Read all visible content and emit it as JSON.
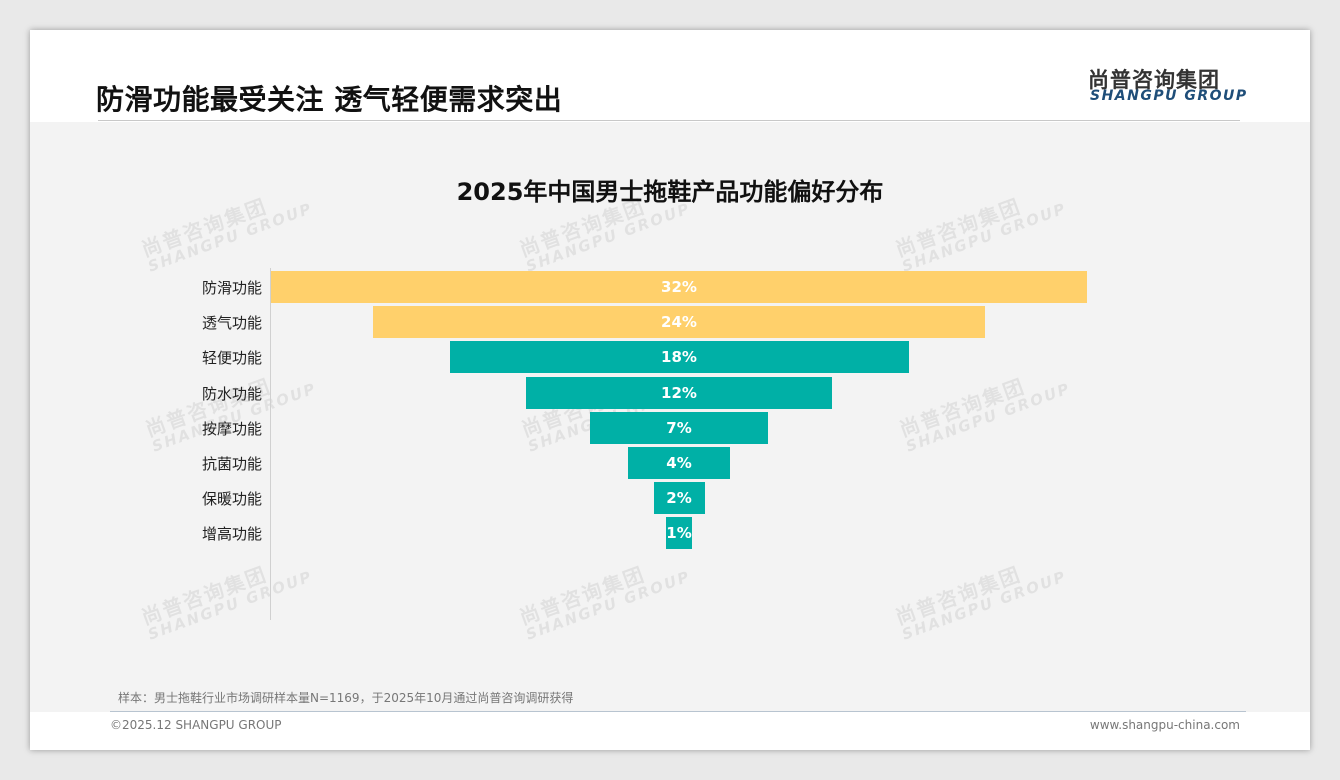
{
  "header": {
    "title": "防滑功能最受关注 透气轻便需求突出",
    "logo_cn": "尚普咨询集团",
    "logo_en": "SHANGPU GROUP"
  },
  "watermark": {
    "cn": "尚普咨询集团",
    "en": "SHANGPU GROUP"
  },
  "chart_data": {
    "type": "bar",
    "subtype": "funnel",
    "title": "2025年中国男士拖鞋产品功能偏好分布",
    "categories": [
      "防滑功能",
      "透气功能",
      "轻便功能",
      "防水功能",
      "按摩功能",
      "抗菌功能",
      "保暖功能",
      "增高功能"
    ],
    "values": [
      32,
      24,
      18,
      12,
      7,
      4,
      2,
      1
    ],
    "labels": [
      "32%",
      "24%",
      "18%",
      "12%",
      "7%",
      "4%",
      "2%",
      "1%"
    ],
    "colors": [
      "#FFD06B",
      "#FFD06B",
      "#00B0A6",
      "#00B0A6",
      "#00B0A6",
      "#00B0A6",
      "#00B0A6",
      "#00B0A6"
    ],
    "unit": "%"
  },
  "footer": {
    "note": "样本：男士拖鞋行业市场调研样本量N=1169，于2025年10月通过尚普咨询调研获得",
    "copyright": "©2025.12 SHANGPU GROUP",
    "url": "www.shangpu-china.com"
  }
}
